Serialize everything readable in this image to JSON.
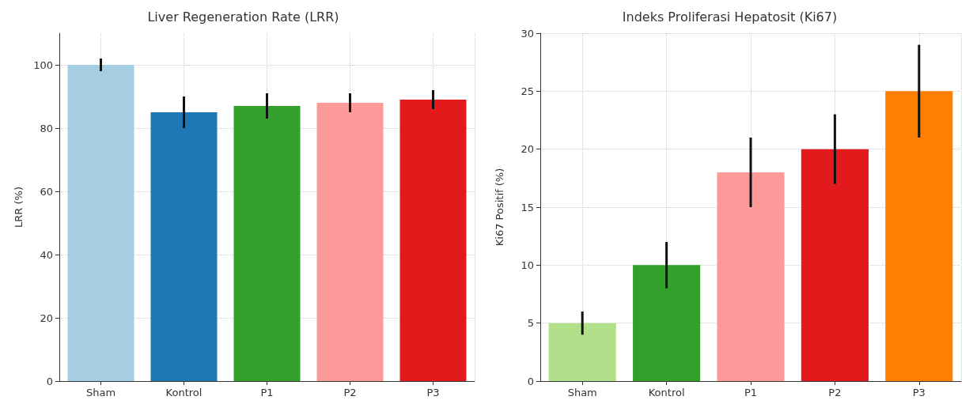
{
  "chart_data": [
    {
      "type": "bar",
      "title": "Liver Regeneration Rate (LRR)",
      "ylabel": "LRR (%)",
      "categories": [
        "Sham",
        "Kontrol",
        "P1",
        "P2",
        "P3"
      ],
      "values": [
        100,
        85,
        87,
        88,
        89
      ],
      "errors": [
        2,
        5,
        4,
        3,
        3
      ],
      "colors": [
        "#a6cee3",
        "#1f78b4",
        "#33a02c",
        "#fb9a99",
        "#e31a1c"
      ],
      "ylim": [
        0,
        110
      ],
      "yticks": [
        0,
        20,
        40,
        60,
        80,
        100
      ],
      "grid": true
    },
    {
      "type": "bar",
      "title": "Indeks Proliferasi Hepatosit (Ki67)",
      "ylabel": "Ki67 Positif (%)",
      "categories": [
        "Sham",
        "Kontrol",
        "P1",
        "P2",
        "P3"
      ],
      "values": [
        5,
        10,
        18,
        20,
        25
      ],
      "errors": [
        1,
        2,
        3,
        3,
        4
      ],
      "colors": [
        "#b2df8a",
        "#33a02c",
        "#fb9a99",
        "#e31a1c",
        "#ff7f00"
      ],
      "ylim": [
        0,
        30
      ],
      "yticks": [
        0,
        5,
        10,
        15,
        20,
        25,
        30
      ],
      "grid": true
    }
  ]
}
